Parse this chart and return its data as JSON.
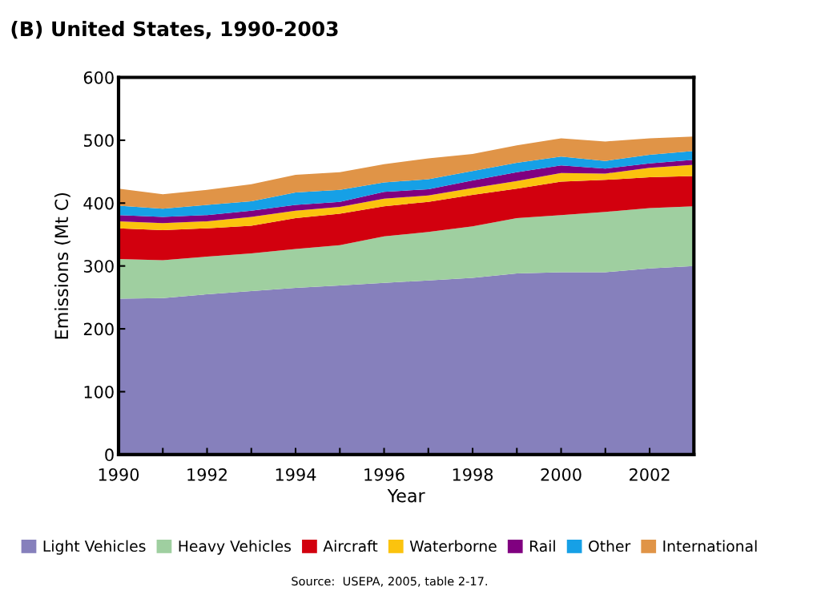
{
  "chart_data": {
    "type": "area",
    "stacked": true,
    "title": "(B) United States, 1990-2003",
    "xlabel": "Year",
    "ylabel": "Emissions (Mt C)",
    "x": [
      1990,
      1991,
      1992,
      1993,
      1994,
      1995,
      1996,
      1997,
      1998,
      1999,
      2000,
      2001,
      2002,
      2003
    ],
    "series": [
      {
        "name": "Light Vehicles",
        "color": "#8680bc",
        "values": [
          248,
          249,
          255,
          260,
          265,
          269,
          273,
          277,
          281,
          288,
          290,
          290,
          296,
          300
        ]
      },
      {
        "name": "Heavy Vehicles",
        "color": "#9fcfa0",
        "values": [
          63,
          60,
          60,
          60,
          62,
          64,
          74,
          77,
          82,
          88,
          91,
          96,
          96,
          95
        ]
      },
      {
        "name": "Aircraft",
        "color": "#d2000e",
        "values": [
          49,
          48,
          45,
          44,
          49,
          50,
          48,
          48,
          50,
          47,
          53,
          51,
          49,
          48
        ]
      },
      {
        "name": "Waterborne",
        "color": "#fbc30e",
        "values": [
          11,
          11,
          11,
          14,
          12,
          11,
          12,
          10,
          11,
          12,
          14,
          10,
          15,
          18
        ]
      },
      {
        "name": "Rail",
        "color": "#800080",
        "values": [
          10,
          10,
          10,
          10,
          9,
          8,
          11,
          10,
          12,
          14,
          12,
          8,
          7,
          8
        ]
      },
      {
        "name": "Other",
        "color": "#16a0e6",
        "values": [
          15,
          13,
          16,
          15,
          20,
          19,
          15,
          16,
          15,
          15,
          14,
          12,
          14,
          14
        ]
      },
      {
        "name": "International",
        "color": "#e09447",
        "values": [
          27,
          23,
          24,
          27,
          28,
          28,
          29,
          33,
          27,
          28,
          29,
          31,
          26,
          23
        ]
      }
    ],
    "xlim": [
      1990,
      2003
    ],
    "ylim": [
      0,
      600
    ],
    "xticks": [
      1990,
      {
        "value": 1991,
        "label": null
      },
      1992,
      {
        "value": 1993,
        "label": null
      },
      1994,
      {
        "value": 1995,
        "label": null
      },
      1996,
      {
        "value": 1997,
        "label": null
      },
      1998,
      {
        "value": 1999,
        "label": null
      },
      2000,
      {
        "value": 2001,
        "label": null
      },
      2002,
      {
        "value": 2003,
        "label": null
      }
    ],
    "yticks": [
      0,
      100,
      200,
      300,
      400,
      500,
      600
    ],
    "grid": false,
    "legend": "bottom",
    "annotations": [
      "Source:  USEPA, 2005, table 2-17."
    ]
  }
}
